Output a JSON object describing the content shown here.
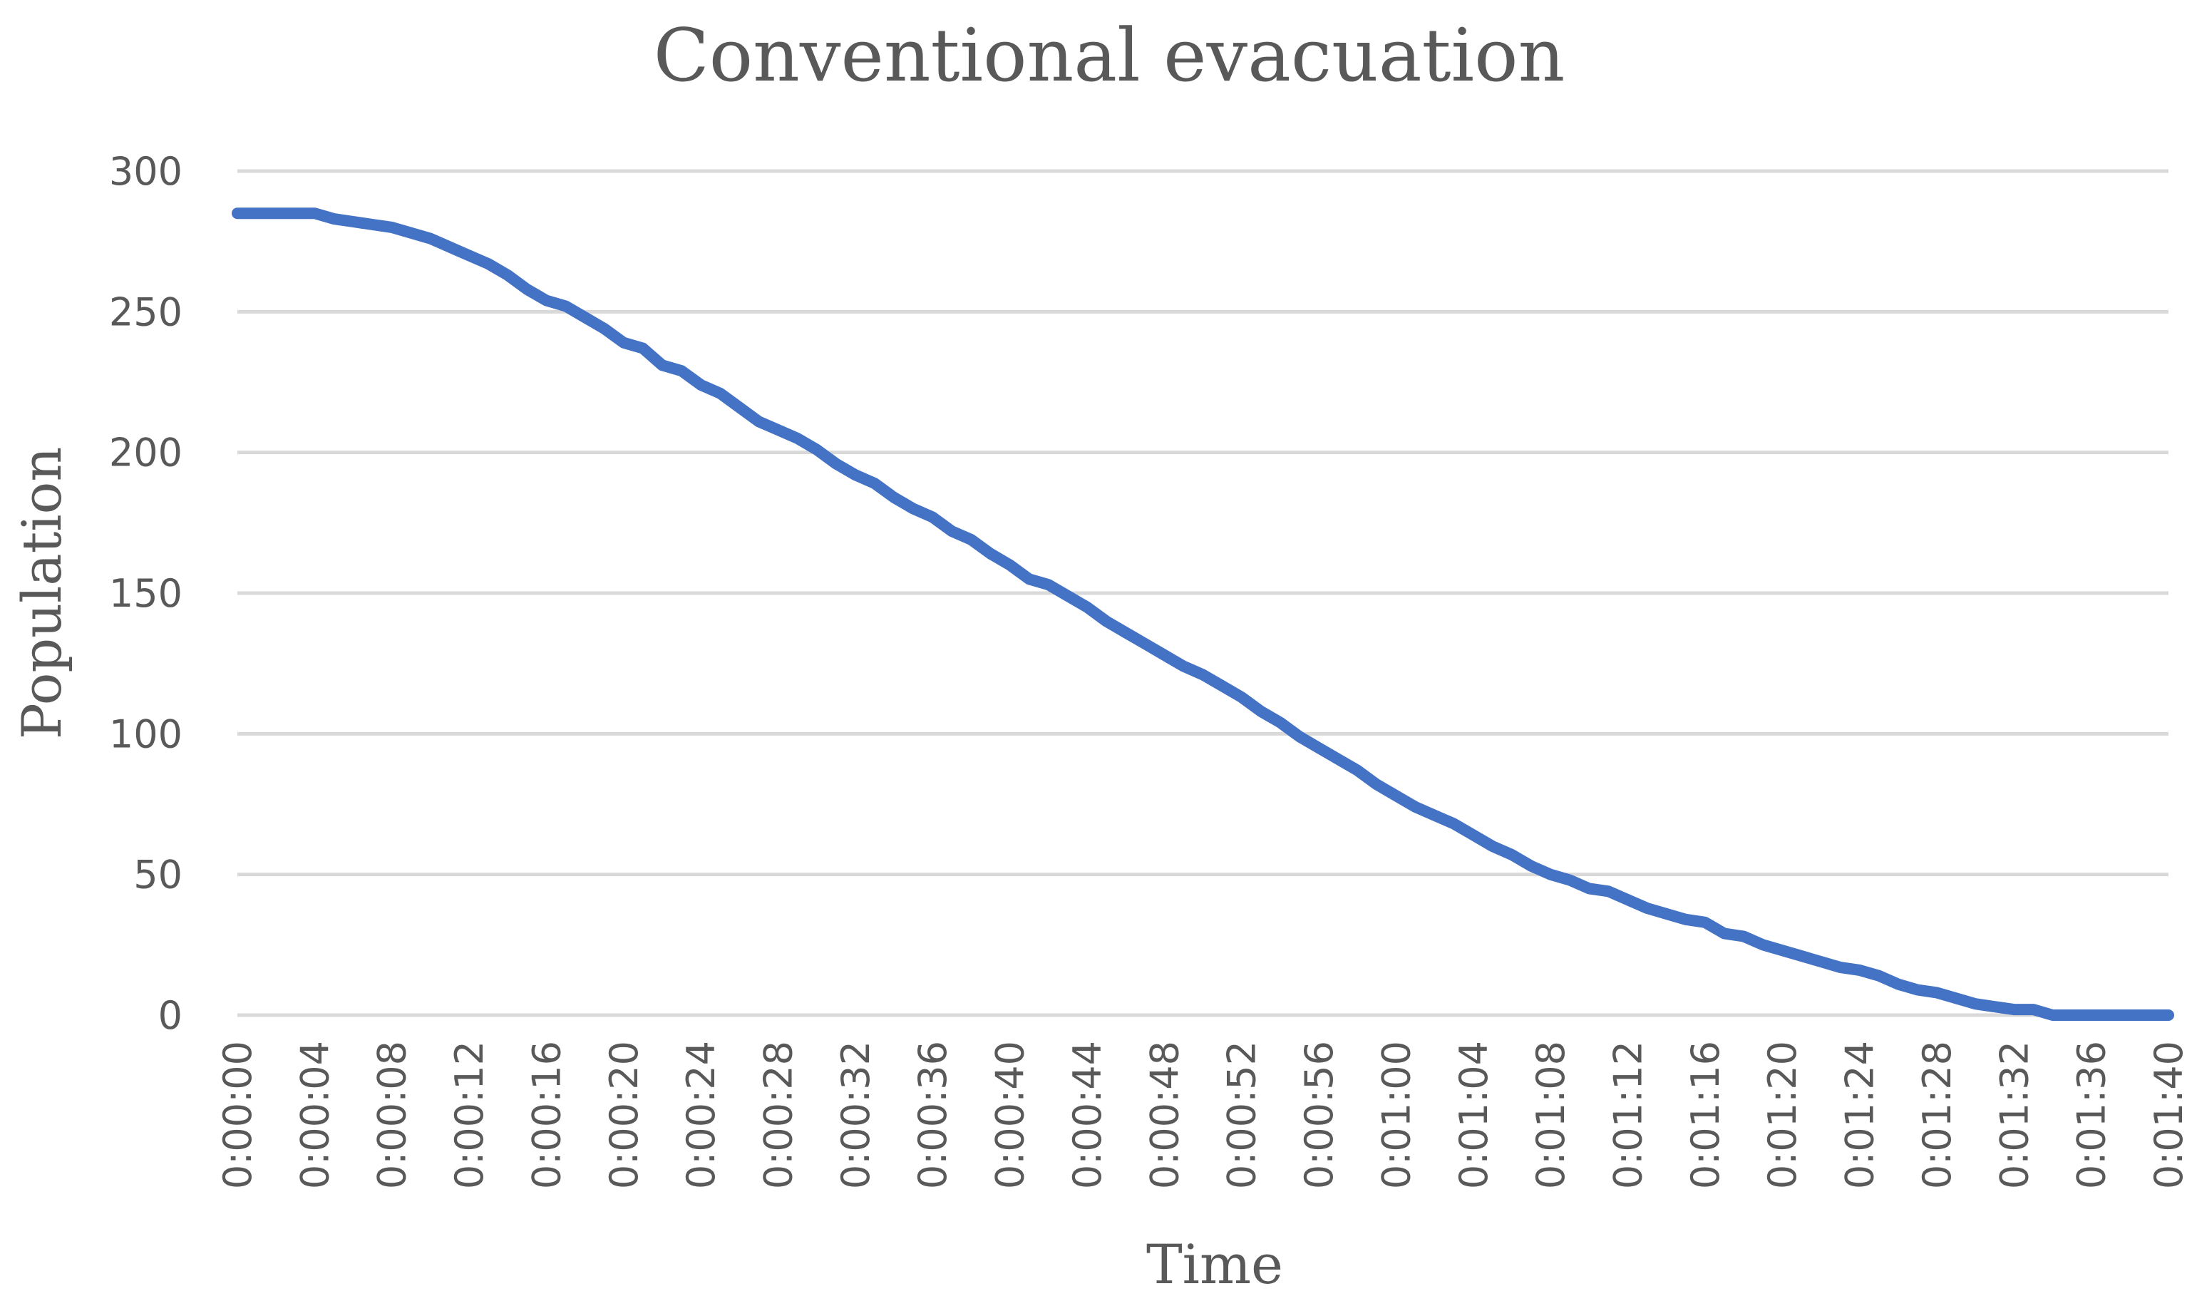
{
  "chart_data": {
    "type": "line",
    "title": "Conventional evacuation",
    "xlabel": "Time",
    "ylabel": "Population",
    "ylim": [
      0,
      300
    ],
    "yticks": [
      0,
      50,
      100,
      150,
      200,
      250,
      300
    ],
    "grid": true,
    "legend": "none",
    "x_tick_labels": [
      "0:00:00",
      "0:00:04",
      "0:00:08",
      "0:00:12",
      "0:00:16",
      "0:00:20",
      "0:00:24",
      "0:00:28",
      "0:00:32",
      "0:00:36",
      "0:00:40",
      "0:00:44",
      "0:00:48",
      "0:00:52",
      "0:00:56",
      "0:01:00",
      "0:01:04",
      "0:01:08",
      "0:01:12",
      "0:01:16",
      "0:01:20",
      "0:01:24",
      "0:01:28",
      "0:01:32",
      "0:01:36",
      "0:01:40"
    ],
    "series": [
      {
        "color": "#4472c4",
        "x_seconds": [
          0,
          1,
          2,
          3,
          4,
          5,
          6,
          7,
          8,
          9,
          10,
          11,
          12,
          13,
          14,
          15,
          16,
          17,
          18,
          19,
          20,
          21,
          22,
          23,
          24,
          25,
          26,
          27,
          28,
          29,
          30,
          31,
          32,
          33,
          34,
          35,
          36,
          37,
          38,
          39,
          40,
          41,
          42,
          43,
          44,
          45,
          46,
          47,
          48,
          49,
          50,
          51,
          52,
          53,
          54,
          55,
          56,
          57,
          58,
          59,
          60,
          61,
          62,
          63,
          64,
          65,
          66,
          67,
          68,
          69,
          70,
          71,
          72,
          73,
          74,
          75,
          76,
          77,
          78,
          79,
          80,
          81,
          82,
          83,
          84,
          85,
          86,
          87,
          88,
          89,
          90,
          91,
          92,
          93,
          94,
          95,
          96,
          97,
          98,
          99,
          100
        ],
        "values": [
          285,
          285,
          285,
          285,
          285,
          283,
          282,
          281,
          280,
          278,
          276,
          273,
          270,
          267,
          263,
          258,
          254,
          252,
          248,
          244,
          239,
          237,
          231,
          229,
          224,
          221,
          216,
          211,
          208,
          205,
          201,
          196,
          192,
          189,
          184,
          180,
          177,
          172,
          169,
          164,
          160,
          155,
          153,
          149,
          145,
          140,
          136,
          132,
          128,
          124,
          121,
          117,
          113,
          108,
          104,
          99,
          95,
          91,
          87,
          82,
          78,
          74,
          71,
          68,
          64,
          60,
          57,
          53,
          50,
          48,
          45,
          44,
          41,
          38,
          36,
          34,
          33,
          29,
          28,
          25,
          23,
          21,
          19,
          17,
          16,
          14,
          11,
          9,
          8,
          6,
          4,
          3,
          2,
          2,
          0,
          0,
          0,
          0,
          0,
          0,
          0
        ]
      }
    ]
  }
}
